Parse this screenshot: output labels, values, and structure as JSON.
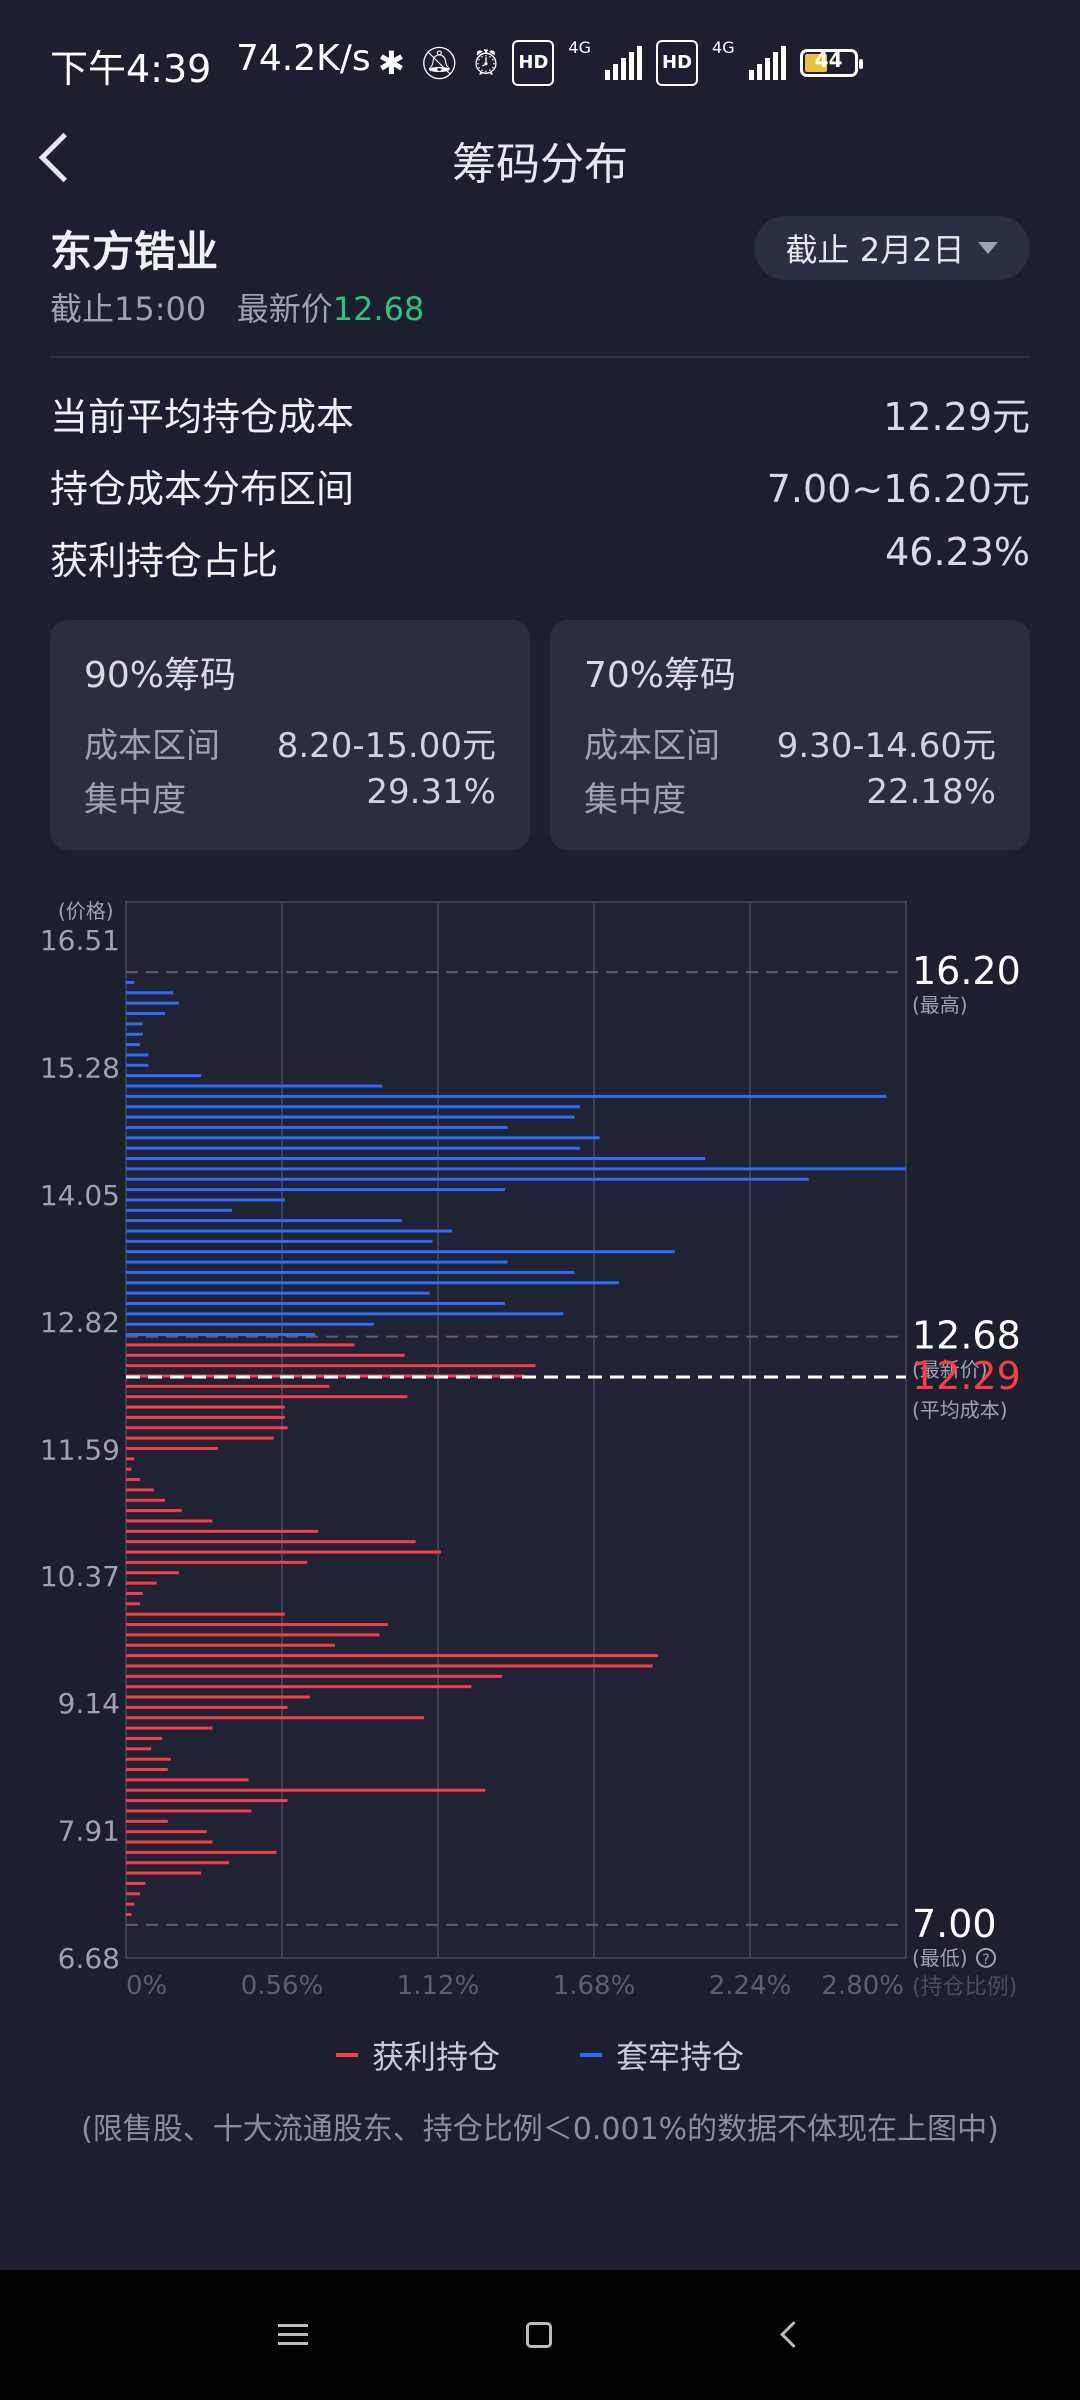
{
  "status_bar": {
    "time": "下午4:39",
    "speed": "74.2K/s",
    "hd1": "HD",
    "net1": "4G",
    "hd2": "HD",
    "net2": "4G",
    "battery": "44"
  },
  "header": {
    "title": "筹码分布"
  },
  "stock": {
    "name": "东方锆业",
    "as_of": "截止15:00",
    "latest_label": "最新价",
    "latest_price": "12.68"
  },
  "date_selector": {
    "label": "截止 2月2日"
  },
  "stats": [
    {
      "label": "当前平均持仓成本",
      "value": "12.29元"
    },
    {
      "label": "持仓成本分布区间",
      "value": "7.00~16.20元"
    },
    {
      "label": "获利持仓占比",
      "value": "46.23%"
    }
  ],
  "cards": [
    {
      "title": "90%筹码",
      "range_label": "成本区间",
      "range_value": "8.20-15.00元",
      "conc_label": "集中度",
      "conc_value": "29.31%"
    },
    {
      "title": "70%筹码",
      "range_label": "成本区间",
      "range_value": "9.30-14.60元",
      "conc_label": "集中度",
      "conc_value": "22.18%"
    }
  ],
  "chart_data": {
    "type": "bar",
    "orientation": "horizontal",
    "y_axis_label": "(价格)",
    "y_ticks": [
      16.51,
      15.28,
      14.05,
      12.82,
      11.59,
      10.37,
      9.14,
      7.91,
      6.68
    ],
    "y_tick_labels": [
      "16.51",
      "15.28",
      "14.05",
      "12.82",
      "11.59",
      "10.37",
      "9.14",
      "7.91",
      "6.68"
    ],
    "ylim": [
      6.68,
      16.51
    ],
    "x_ticks": [
      0,
      0.56,
      1.12,
      1.68,
      2.24,
      2.8
    ],
    "x_tick_labels": [
      "0%",
      "0.56%",
      "1.12%",
      "1.68%",
      "2.24%",
      "2.80%"
    ],
    "x_axis_label": "持仓比例",
    "xlim": [
      0,
      2.8
    ],
    "grid": true,
    "markers": [
      {
        "value": 16.2,
        "label": "16.20",
        "sublabel": "(最高)",
        "color": "#ffffff",
        "style": "gray-dashed"
      },
      {
        "value": 12.68,
        "label": "12.68",
        "sublabel": "(最新价)",
        "color": "#ffffff",
        "style": "gray-dashed"
      },
      {
        "value": 12.29,
        "label": "12.29",
        "sublabel": "(平均成本)",
        "color": "#ff3b48",
        "style": "white-dashed"
      },
      {
        "value": 7.0,
        "label": "7.00",
        "sublabel": "(最低)",
        "color": "#ffffff",
        "style": "gray-dashed"
      }
    ],
    "help_icon": "question-circle-icon",
    "series": [
      {
        "name": "套牢持仓",
        "color": "#2f6bff",
        "points": [
          [
            16.1,
            0.03
          ],
          [
            16.0,
            0.17
          ],
          [
            15.9,
            0.19
          ],
          [
            15.8,
            0.14
          ],
          [
            15.7,
            0.06
          ],
          [
            15.6,
            0.06
          ],
          [
            15.5,
            0.05
          ],
          [
            15.4,
            0.08
          ],
          [
            15.3,
            0.08
          ],
          [
            15.2,
            0.27
          ],
          [
            15.1,
            0.92
          ],
          [
            15.0,
            2.73
          ],
          [
            14.9,
            1.63
          ],
          [
            14.8,
            1.61
          ],
          [
            14.7,
            1.37
          ],
          [
            14.6,
            1.7
          ],
          [
            14.5,
            1.63
          ],
          [
            14.4,
            2.08
          ],
          [
            14.3,
            2.8
          ],
          [
            14.2,
            2.45
          ],
          [
            14.1,
            1.36
          ],
          [
            14.0,
            0.57
          ],
          [
            13.9,
            0.38
          ],
          [
            13.8,
            0.99
          ],
          [
            13.7,
            1.17
          ],
          [
            13.6,
            1.1
          ],
          [
            13.5,
            1.97
          ],
          [
            13.4,
            1.37
          ],
          [
            13.3,
            1.61
          ],
          [
            13.2,
            1.77
          ],
          [
            13.1,
            1.09
          ],
          [
            13.0,
            1.36
          ],
          [
            12.9,
            1.57
          ],
          [
            12.8,
            0.89
          ],
          [
            12.7,
            0.68
          ]
        ]
      },
      {
        "name": "获利持仓",
        "color": "#ff3b48",
        "points": [
          [
            12.6,
            0.82
          ],
          [
            12.5,
            1.0
          ],
          [
            12.4,
            1.47
          ],
          [
            12.3,
            1.43
          ],
          [
            12.2,
            0.73
          ],
          [
            12.1,
            1.01
          ],
          [
            12.0,
            0.57
          ],
          [
            11.9,
            0.57
          ],
          [
            11.8,
            0.58
          ],
          [
            11.7,
            0.53
          ],
          [
            11.6,
            0.33
          ],
          [
            11.5,
            0.03
          ],
          [
            11.4,
            0.02
          ],
          [
            11.3,
            0.05
          ],
          [
            11.2,
            0.1
          ],
          [
            11.1,
            0.14
          ],
          [
            11.0,
            0.2
          ],
          [
            10.9,
            0.31
          ],
          [
            10.8,
            0.69
          ],
          [
            10.7,
            1.04
          ],
          [
            10.6,
            1.13
          ],
          [
            10.5,
            0.65
          ],
          [
            10.4,
            0.19
          ],
          [
            10.3,
            0.11
          ],
          [
            10.2,
            0.06
          ],
          [
            10.1,
            0.05
          ],
          [
            10.0,
            0.57
          ],
          [
            9.9,
            0.94
          ],
          [
            9.8,
            0.91
          ],
          [
            9.7,
            0.75
          ],
          [
            9.6,
            1.91
          ],
          [
            9.5,
            1.89
          ],
          [
            9.4,
            1.35
          ],
          [
            9.3,
            1.24
          ],
          [
            9.2,
            0.66
          ],
          [
            9.1,
            0.58
          ],
          [
            9.0,
            1.07
          ],
          [
            8.9,
            0.31
          ],
          [
            8.8,
            0.13
          ],
          [
            8.7,
            0.09
          ],
          [
            8.6,
            0.16
          ],
          [
            8.5,
            0.15
          ],
          [
            8.4,
            0.44
          ],
          [
            8.3,
            1.29
          ],
          [
            8.2,
            0.58
          ],
          [
            8.1,
            0.45
          ],
          [
            8.0,
            0.15
          ],
          [
            7.9,
            0.29
          ],
          [
            7.8,
            0.31
          ],
          [
            7.7,
            0.54
          ],
          [
            7.6,
            0.37
          ],
          [
            7.5,
            0.27
          ],
          [
            7.4,
            0.07
          ],
          [
            7.3,
            0.05
          ],
          [
            7.2,
            0.03
          ],
          [
            7.1,
            0.02
          ]
        ]
      }
    ]
  },
  "legend": {
    "profit": "获利持仓",
    "trapped": "套牢持仓",
    "profit_color": "#ff3b48",
    "trapped_color": "#2f6bff"
  },
  "note": "(限售股、十大流通股东、持仓比例＜0.001%的数据不体现在上图中)"
}
